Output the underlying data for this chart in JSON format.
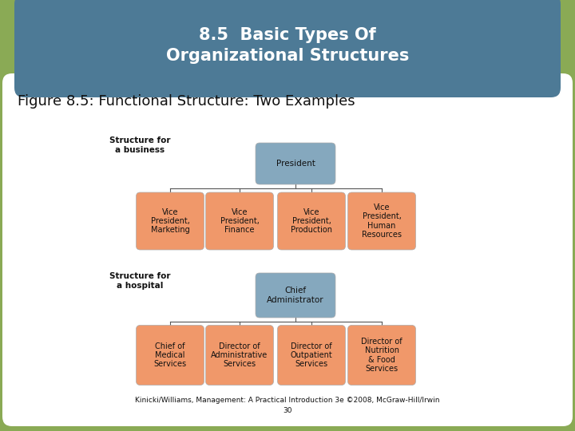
{
  "title": "8.5  Basic Types Of\nOrganizational Structures",
  "subtitle": "Figure 8.5: Functional Structure: Two Examples",
  "footer": "Kinicki/Williams, Management: A Practical Introduction 3e ©2008, McGraw-Hill/Irwin\n30",
  "bg_outer": "#8aaa55",
  "bg_header": "#4d7a96",
  "bg_content": "#ffffff",
  "box_blue": "#85a8be",
  "box_orange": "#f0986a",
  "title_color": "#ffffff",
  "subtitle_color": "#111111",
  "business_label": "Structure for\na business",
  "hospital_label": "Structure for\na hospital",
  "business_top": "President",
  "hospital_top": "Chief\nAdministrator",
  "business_children": [
    "Vice\nPresident,\nMarketing",
    "Vice\nPresident,\nFinance",
    "Vice\nPresident,\nProduction",
    "Vice\nPresident,\nHuman\nResources"
  ],
  "hospital_children": [
    "Chief of\nMedical\nServices",
    "Director of\nAdministrative\nServices",
    "Director of\nOutpatient\nServices",
    "Director of\nNutrition\n& Food\nServices"
  ],
  "footer_color": "#111111",
  "line_color": "#555555"
}
